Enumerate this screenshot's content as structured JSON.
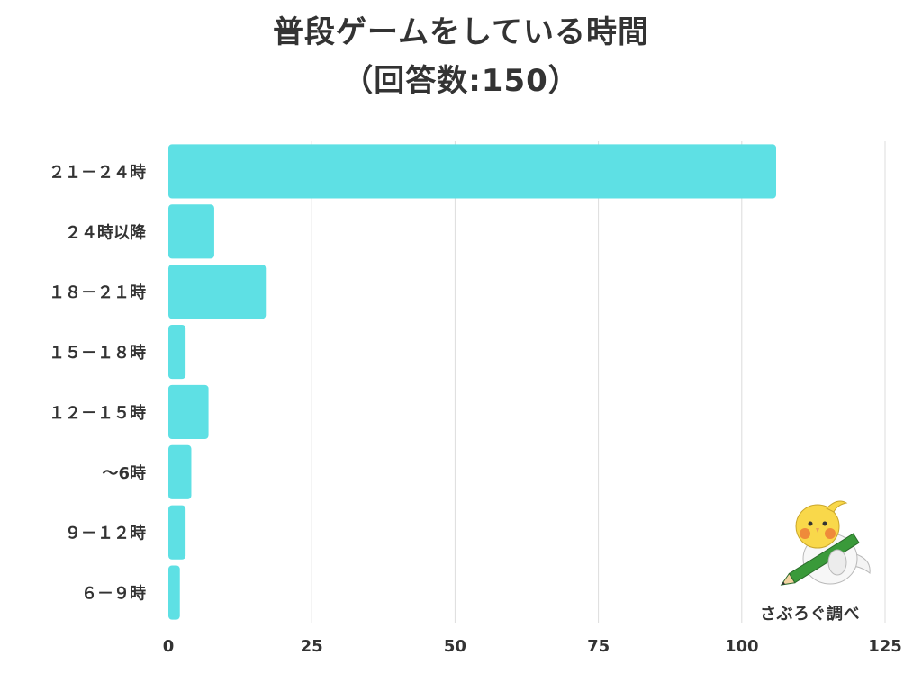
{
  "title": {
    "line1": "普段ゲームをしている時間",
    "line2": "（回答数:150）"
  },
  "source": {
    "label": "さぶろぐ調べ",
    "icon": "bird-with-pencil-mascot"
  },
  "colors": {
    "bar": "#5ee0e4",
    "grid": "#dcdcdc",
    "text": "#333333"
  },
  "chart_data": {
    "type": "bar",
    "orientation": "horizontal",
    "categories": [
      "２１－２４時",
      "２４時以降",
      "１８－２１時",
      "１５－１８時",
      "１２－１５時",
      "～6時",
      "９－１２時",
      "６－９時"
    ],
    "values": [
      106,
      8,
      17,
      3,
      7,
      4,
      3,
      2
    ],
    "xlim": [
      0,
      125
    ],
    "xticks": [
      0,
      25,
      50,
      75,
      100,
      125
    ],
    "xtick_labels": [
      "0",
      "25",
      "50",
      "75",
      "100",
      "125"
    ],
    "grid": true,
    "legend": "none",
    "title": "普段ゲームをしている時間（回答数:150）",
    "xlabel": "",
    "ylabel": ""
  }
}
